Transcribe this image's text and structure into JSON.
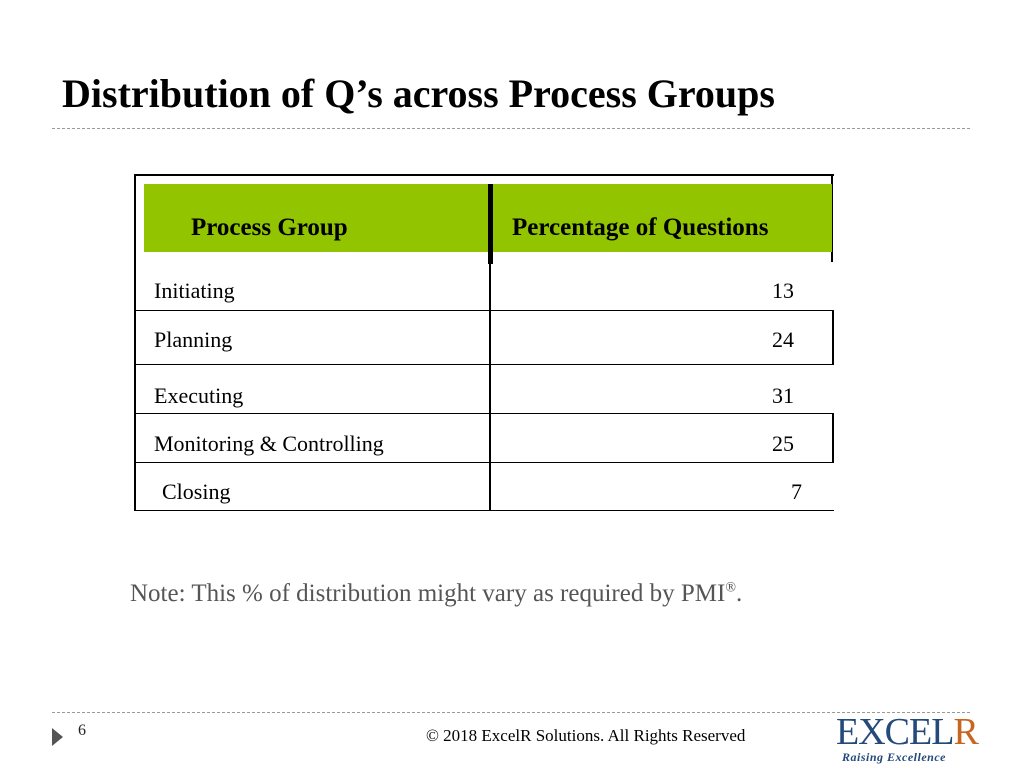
{
  "slide": {
    "title": "Distribution of Q’s across Process Groups",
    "page_number": "6"
  },
  "table": {
    "headers": [
      "Process Group",
      "Percentage of Questions"
    ],
    "rows": [
      {
        "name": "Initiating",
        "value": "13"
      },
      {
        "name": "Planning",
        "value": "24"
      },
      {
        "name": "Executing",
        "value": "31"
      },
      {
        "name": "Monitoring & Controlling",
        "value": "25"
      },
      {
        "name": "Closing",
        "value": "7"
      }
    ]
  },
  "note": {
    "text": "Note: This % of distribution might vary as required by PMI",
    "reg": "®",
    "end": "."
  },
  "footer": {
    "copyright": "© 2018 ExcelR Solutions. All Rights Reserved",
    "logo_main": "EXCEL",
    "logo_r": "R",
    "logo_tagline": "Raising Excellence"
  },
  "colors": {
    "header_fill": "#93c400",
    "logo_blue": "#244a7a",
    "logo_orange": "#c8651e"
  }
}
